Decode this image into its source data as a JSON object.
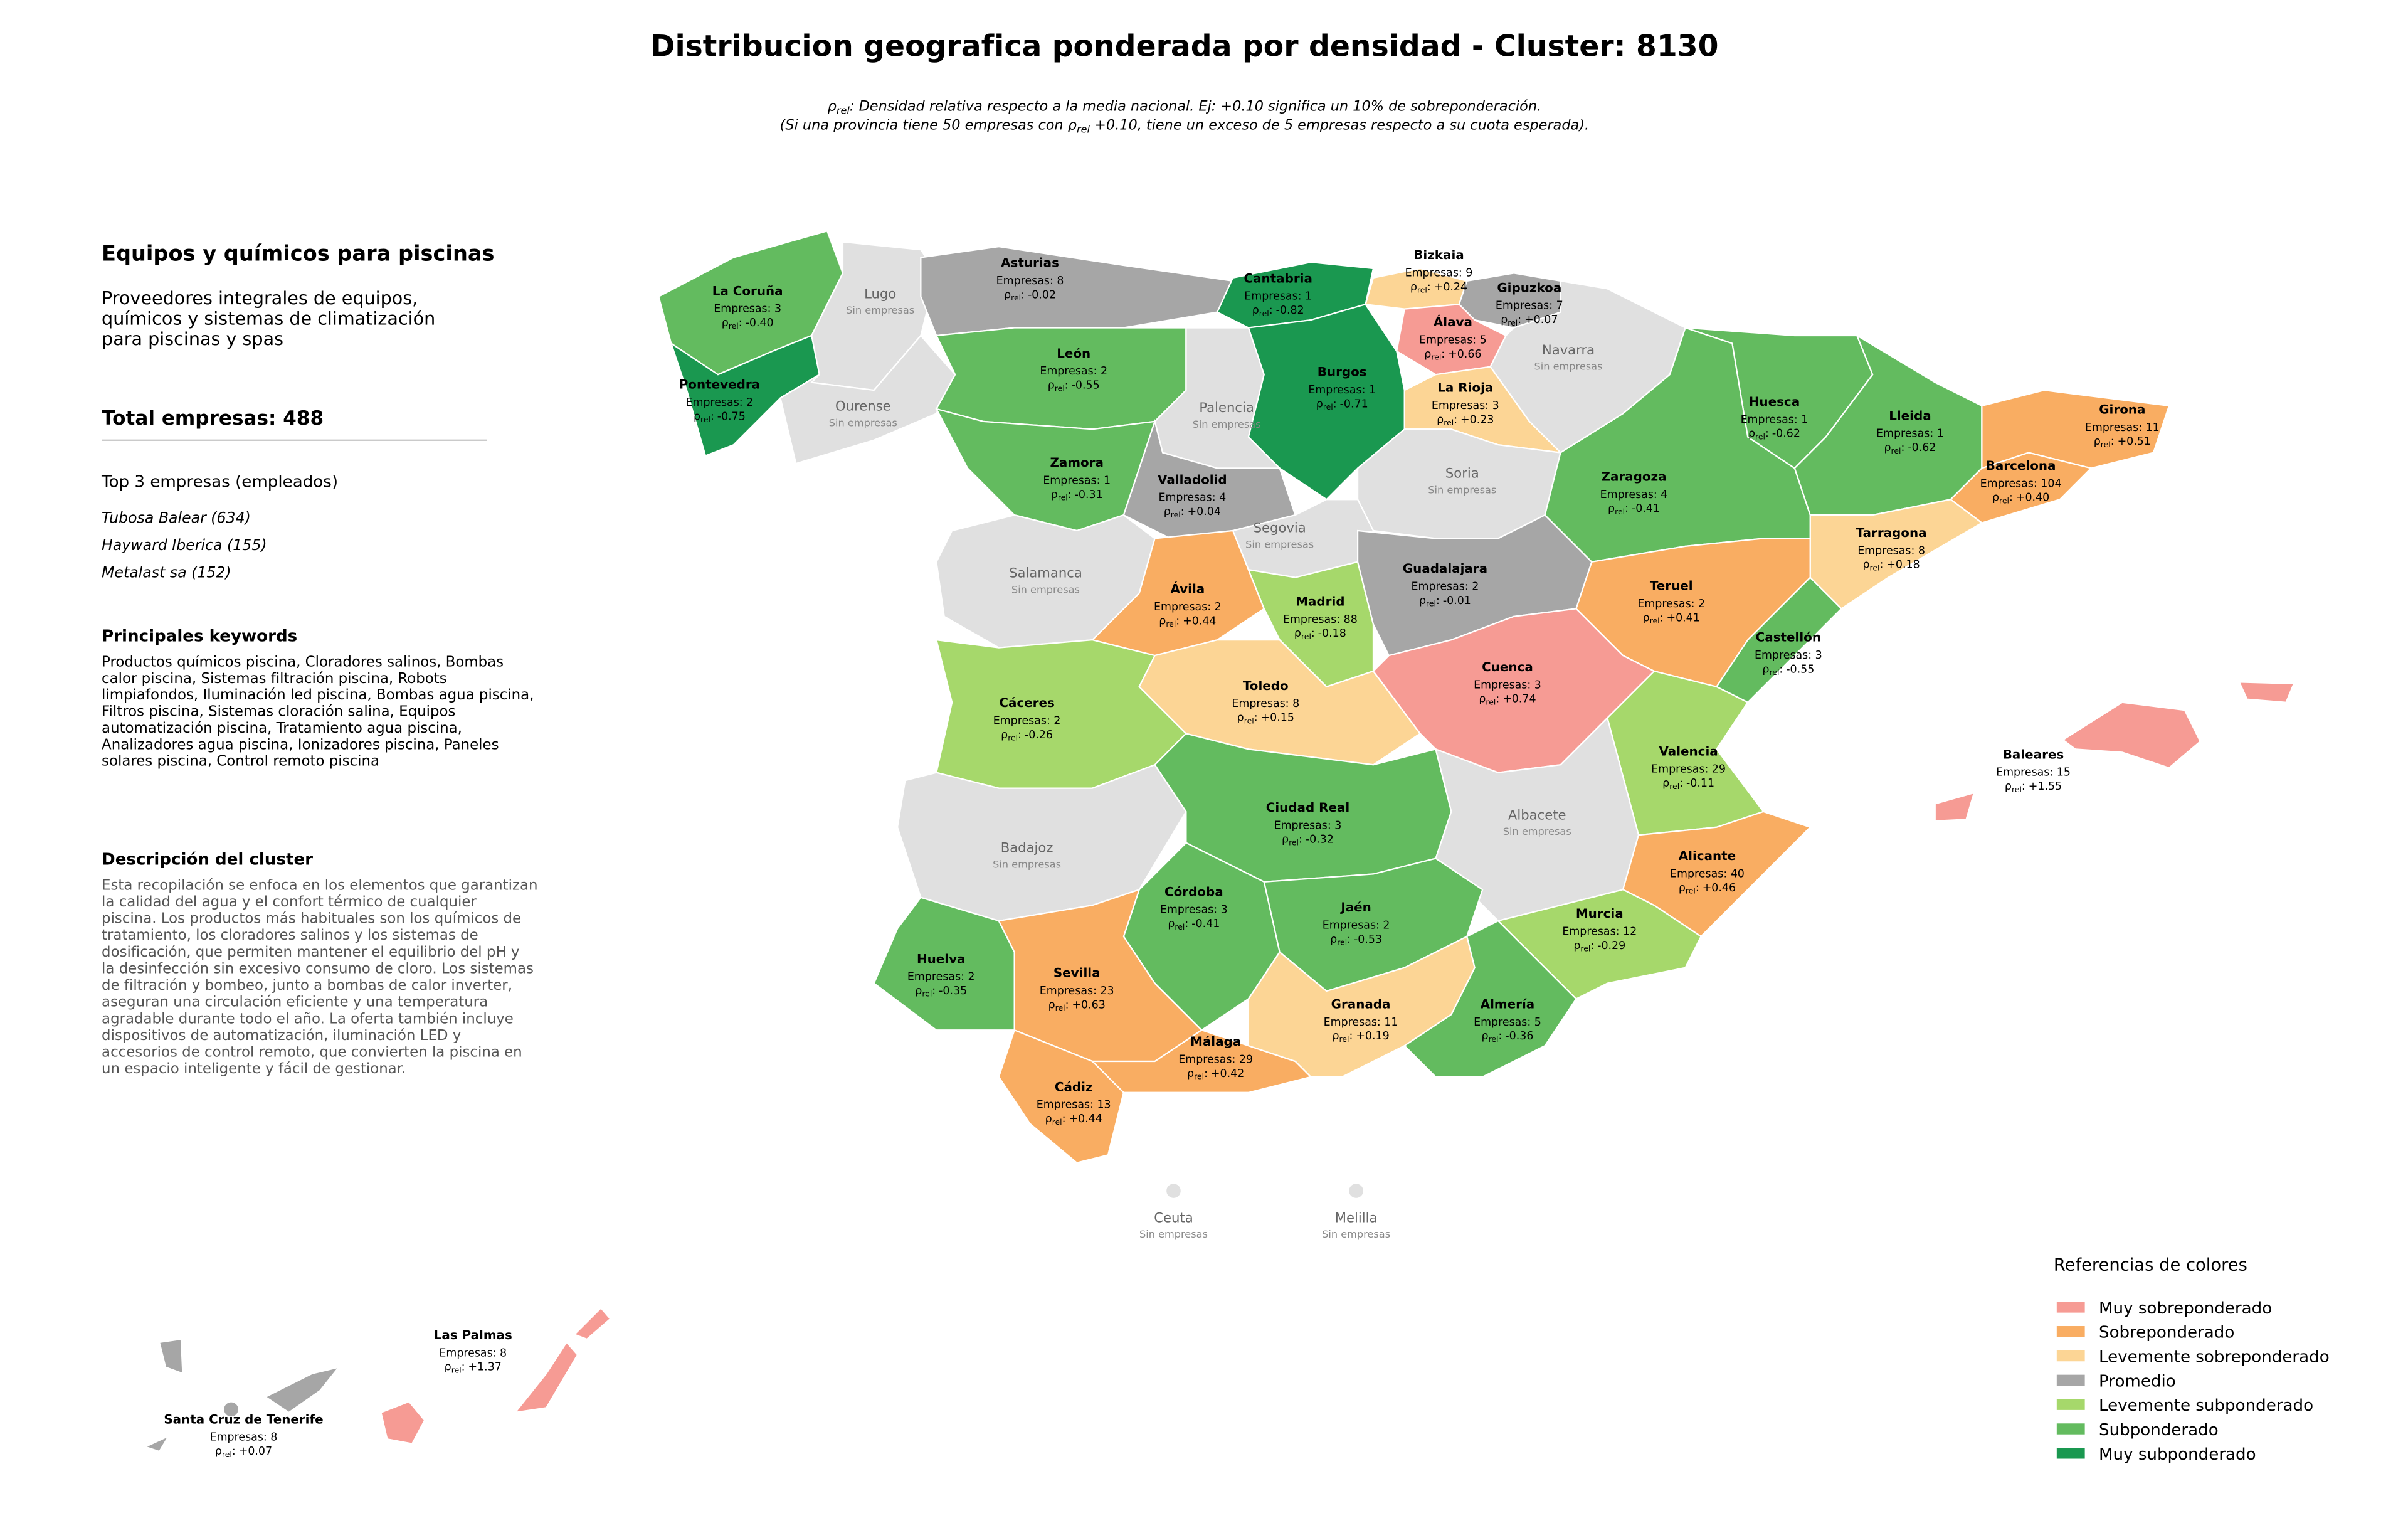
{
  "title": "Distribucion geografica ponderada por densidad - Cluster: 8130",
  "subtitle": {
    "line1": {
      "symbol": "ρ",
      "sub": "rel",
      "text": ": Densidad relativa respecto a la media nacional. Ej: +0.10 significa un 10% de sobreponderación."
    },
    "line2": {
      "before": "(Si una provincia tiene 50 empresas con ρ",
      "sub": "rel",
      "after": " +0.10, tiene un exceso de 5 empresas respecto a su cuota esperada)."
    }
  },
  "sidebar": {
    "title": "Equipos y químicos para piscinas",
    "description": [
      "Proveedores integrales de equipos,",
      "químicos y sistemas de climatización",
      "para piscinas y spas"
    ],
    "total": "Total empresas: 488",
    "top_title": "Top 3 empresas (empleados)",
    "top": [
      "Tubosa Balear (634)",
      "Hayward Iberica (155)",
      "Metalast sa (152)"
    ],
    "keywords_title": "Principales keywords",
    "keywords": [
      "Productos químicos piscina, Cloradores salinos, Bombas",
      "calor piscina, Sistemas filtración piscina, Robots",
      "limpiafondos, Iluminación led piscina, Bombas agua piscina,",
      "Filtros piscina, Sistemas cloración salina, Equipos",
      "automatización piscina, Tratamiento agua piscina,",
      "Analizadores agua piscina, Ionizadores piscina, Paneles",
      "solares piscina, Control remoto piscina"
    ],
    "cluster_title": "Descripción del cluster",
    "cluster_text": [
      "Esta recopilación se enfoca en los elementos que garantizan",
      "la calidad del agua y el confort térmico de cualquier",
      "piscina. Los productos más habituales son los químicos de",
      "tratamiento, los cloradores salinos y los sistemas de",
      "dosificación, que permiten mantener el equilibrio del pH y",
      "la desinfección sin excesivo consumo de cloro. Los sistemas",
      "de filtración y bombeo, junto a bombas de calor inverter,",
      "aseguran una circulación eficiente y una temperatura",
      "agradable durante todo el año. La oferta también incluye",
      "dispositivos de automatización, iluminación LED y",
      "accesorios de control remoto, que convierten la piscina en",
      "un espacio inteligente y fácil de gestionar."
    ]
  },
  "rho_label": {
    "symbol": "ρ",
    "sub": "rel",
    "sep": ":"
  },
  "provinces": [
    {
      "name": "La Coruña",
      "empresas": "Empresas: 3",
      "rho": "-0.40",
      "color": "#63bb5f"
    },
    {
      "name": "Lugo",
      "status": "Sin empresas",
      "color": "#e0e0e0"
    },
    {
      "name": "Pontevedra",
      "empresas": "Empresas: 2",
      "rho": "-0.75",
      "color": "#1a9850"
    },
    {
      "name": "Ourense",
      "status": "Sin empresas",
      "color": "#e0e0e0"
    },
    {
      "name": "Asturias",
      "empresas": "Empresas: 8",
      "rho": "-0.02",
      "color": "#a6a6a6"
    },
    {
      "name": "Cantabria",
      "empresas": "Empresas: 1",
      "rho": "-0.82",
      "color": "#1a9850"
    },
    {
      "name": "Bizkaia",
      "empresas": "Empresas: 9",
      "rho": "+0.24",
      "color": "#fcd595"
    },
    {
      "name": "Gipuzkoa",
      "empresas": "Empresas: 7",
      "rho": "+0.07",
      "color": "#a6a6a6"
    },
    {
      "name": "Álava",
      "empresas": "Empresas: 5",
      "rho": "+0.66",
      "color": "#f69b94"
    },
    {
      "name": "Navarra",
      "status": "Sin empresas",
      "color": "#e0e0e0"
    },
    {
      "name": "León",
      "empresas": "Empresas: 2",
      "rho": "-0.55",
      "color": "#63bb5f"
    },
    {
      "name": "Palencia",
      "status": "Sin empresas",
      "color": "#e0e0e0"
    },
    {
      "name": "Burgos",
      "empresas": "Empresas: 1",
      "rho": "-0.71",
      "color": "#1a9850"
    },
    {
      "name": "La Rioja",
      "empresas": "Empresas: 3",
      "rho": "+0.23",
      "color": "#fcd595"
    },
    {
      "name": "Zamora",
      "empresas": "Empresas: 1",
      "rho": "-0.31",
      "color": "#63bb5f"
    },
    {
      "name": "Valladolid",
      "empresas": "Empresas: 4",
      "rho": "+0.04",
      "color": "#a6a6a6"
    },
    {
      "name": "Soria",
      "status": "Sin empresas",
      "color": "#e0e0e0"
    },
    {
      "name": "Segovia",
      "status": "Sin empresas",
      "color": "#e0e0e0"
    },
    {
      "name": "Salamanca",
      "status": "Sin empresas",
      "color": "#e0e0e0"
    },
    {
      "name": "Ávila",
      "empresas": "Empresas: 2",
      "rho": "+0.44",
      "color": "#f9ad62"
    },
    {
      "name": "Madrid",
      "empresas": "Empresas: 88",
      "rho": "-0.18",
      "color": "#a6d86b"
    },
    {
      "name": "Guadalajara",
      "empresas": "Empresas: 2",
      "rho": "-0.01",
      "color": "#a6a6a6"
    },
    {
      "name": "Huesca",
      "empresas": "Empresas: 1",
      "rho": "-0.62",
      "color": "#63bb5f"
    },
    {
      "name": "Lleida",
      "empresas": "Empresas: 1",
      "rho": "-0.62",
      "color": "#63bb5f"
    },
    {
      "name": "Girona",
      "empresas": "Empresas: 11",
      "rho": "+0.51",
      "color": "#f9ad62"
    },
    {
      "name": "Barcelona",
      "empresas": "Empresas: 104",
      "rho": "+0.40",
      "color": "#f9ad62"
    },
    {
      "name": "Tarragona",
      "empresas": "Empresas: 8",
      "rho": "+0.18",
      "color": "#fcd595"
    },
    {
      "name": "Zaragoza",
      "empresas": "Empresas: 4",
      "rho": "-0.41",
      "color": "#63bb5f"
    },
    {
      "name": "Teruel",
      "empresas": "Empresas: 2",
      "rho": "+0.41",
      "color": "#f9ad62"
    },
    {
      "name": "Castellón",
      "empresas": "Empresas: 3",
      "rho": "-0.55",
      "color": "#63bb5f"
    },
    {
      "name": "Cáceres",
      "empresas": "Empresas: 2",
      "rho": "-0.26",
      "color": "#a6d86b"
    },
    {
      "name": "Toledo",
      "empresas": "Empresas: 8",
      "rho": "+0.15",
      "color": "#fcd595"
    },
    {
      "name": "Cuenca",
      "empresas": "Empresas: 3",
      "rho": "+0.74",
      "color": "#f69b94"
    },
    {
      "name": "Valencia",
      "empresas": "Empresas: 29",
      "rho": "-0.11",
      "color": "#a6d86b"
    },
    {
      "name": "Badajoz",
      "status": "Sin empresas",
      "color": "#e0e0e0"
    },
    {
      "name": "Ciudad Real",
      "empresas": "Empresas: 3",
      "rho": "-0.32",
      "color": "#63bb5f"
    },
    {
      "name": "Albacete",
      "status": "Sin empresas",
      "color": "#e0e0e0"
    },
    {
      "name": "Alicante",
      "empresas": "Empresas: 40",
      "rho": "+0.46",
      "color": "#f9ad62"
    },
    {
      "name": "Murcia",
      "empresas": "Empresas: 12",
      "rho": "-0.29",
      "color": "#a6d86b"
    },
    {
      "name": "Córdoba",
      "empresas": "Empresas: 3",
      "rho": "-0.41",
      "color": "#63bb5f"
    },
    {
      "name": "Jaén",
      "empresas": "Empresas: 2",
      "rho": "-0.53",
      "color": "#63bb5f"
    },
    {
      "name": "Huelva",
      "empresas": "Empresas: 2",
      "rho": "-0.35",
      "color": "#63bb5f"
    },
    {
      "name": "Sevilla",
      "empresas": "Empresas: 23",
      "rho": "+0.63",
      "color": "#f9ad62"
    },
    {
      "name": "Cádiz",
      "empresas": "Empresas: 13",
      "rho": "+0.44",
      "color": "#f9ad62"
    },
    {
      "name": "Málaga",
      "empresas": "Empresas: 29",
      "rho": "+0.42",
      "color": "#f9ad62"
    },
    {
      "name": "Granada",
      "empresas": "Empresas: 11",
      "rho": "+0.19",
      "color": "#fcd595"
    },
    {
      "name": "Almería",
      "empresas": "Empresas: 5",
      "rho": "-0.36",
      "color": "#63bb5f"
    },
    {
      "name": "Baleares",
      "empresas": "Empresas: 15",
      "rho": "+1.55",
      "color": "#f69b94"
    },
    {
      "name": "Las Palmas",
      "empresas": "Empresas: 8",
      "rho": "+1.37",
      "color": "#f69b94"
    },
    {
      "name": "Santa Cruz de Tenerife",
      "empresas": "Empresas: 8",
      "rho": "+0.07",
      "color": "#a6a6a6"
    },
    {
      "name": "Ceuta",
      "status": "Sin empresas",
      "color": "#e0e0e0"
    },
    {
      "name": "Melilla",
      "status": "Sin empresas",
      "color": "#e0e0e0"
    }
  ],
  "legend": {
    "title": "Referencias de colores",
    "items": [
      {
        "name": "Muy sobreponderado",
        "color": "#f69b94"
      },
      {
        "name": "Sobreponderado",
        "color": "#f9ad62"
      },
      {
        "name": "Levemente sobreponderado",
        "color": "#fcd595"
      },
      {
        "name": "Promedio",
        "color": "#a6a6a6"
      },
      {
        "name": "Levemente subponderado",
        "color": "#a6d86b"
      },
      {
        "name": "Subponderado",
        "color": "#63bb5f"
      },
      {
        "name": "Muy subponderado",
        "color": "#1a9850"
      }
    ]
  }
}
